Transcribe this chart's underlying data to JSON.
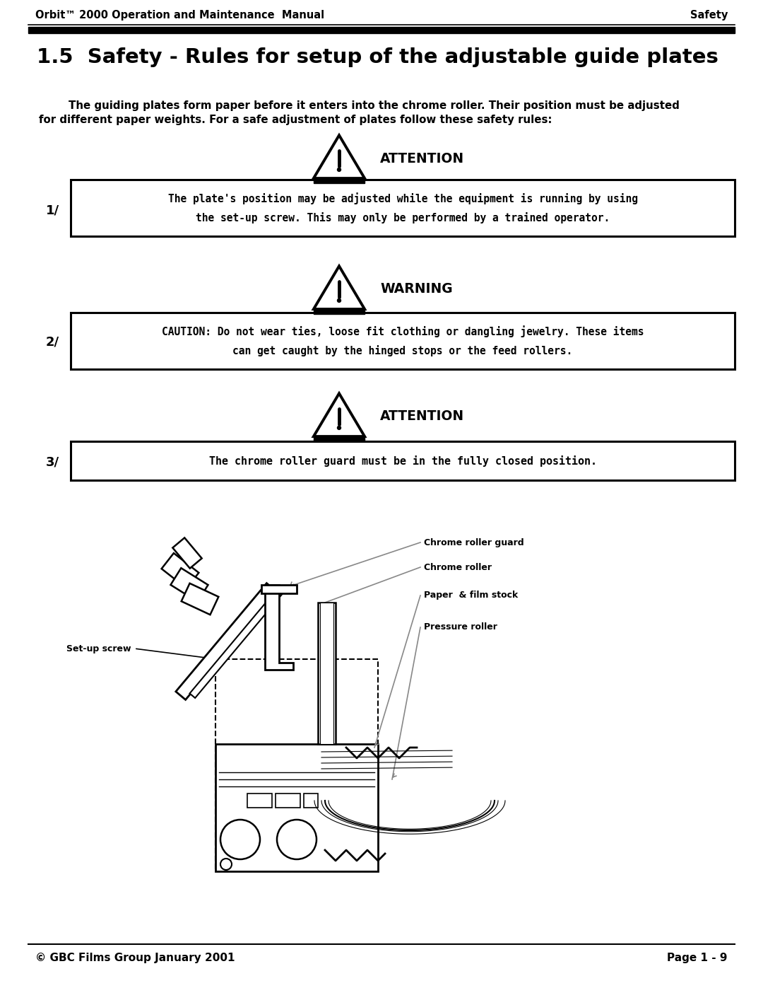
{
  "bg_color": "#ffffff",
  "header_left": "Orbit™ 2000 Operation and Maintenance  Manual",
  "header_right": "Safety",
  "footer_left": "© GBC Films Group January 2001",
  "footer_right": "Page 1 - 9",
  "title": "1.5  Safety - Rules for setup of the adjustable guide plates",
  "intro_line1": "        The guiding plates form paper before it enters into the chrome roller. Their position must be adjusted",
  "intro_line2": "for different paper weights. For a safe adjustment of plates follow these safety rules:",
  "section1_label": "1/",
  "section1_type": "ATTENTION",
  "section1_box": "The plate's position may be adjusted while the equipment is running by using\nthe set-up screw. This may only be performed by a trained operator.",
  "section2_label": "2/",
  "section2_type": "WARNING",
  "section2_box": "CAUTION: Do not wear ties, loose fit clothing or dangling jewelry. These items\ncan get caught by the hinged stops or the feed rollers.",
  "section3_label": "3/",
  "section3_type": "ATTENTION",
  "section3_box": "The chrome roller guard must be in the fully closed position.",
  "label_chrome_guard": "Chrome roller guard",
  "label_chrome_roller": "Chrome roller",
  "label_paper_film": "Paper  & film stock",
  "label_pressure": "Pressure roller",
  "label_setup_screw": "Set-up screw"
}
